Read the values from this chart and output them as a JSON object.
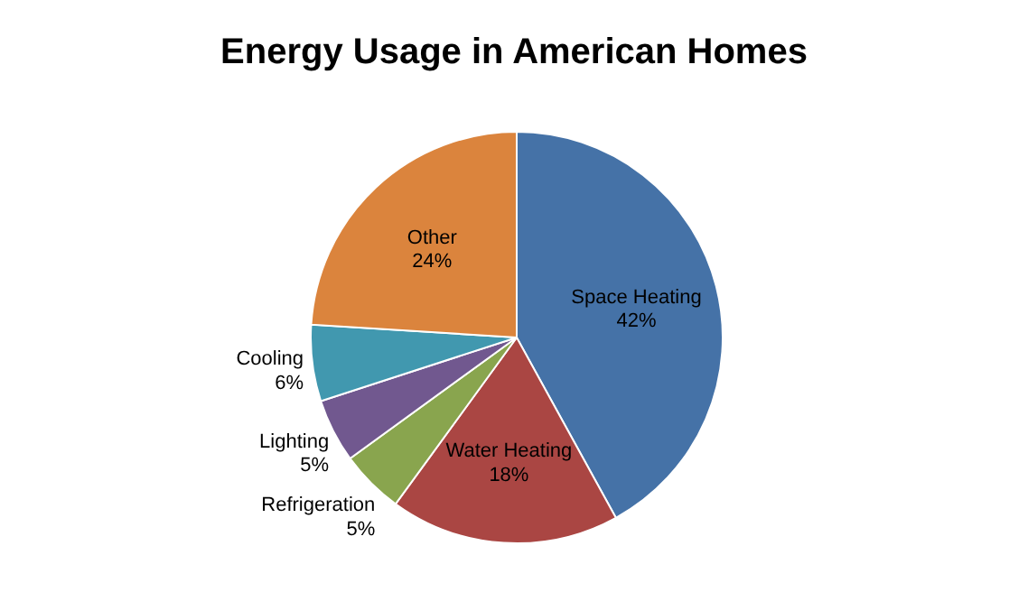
{
  "chart_data": {
    "type": "pie",
    "title": "Energy Usage in American Homes",
    "categories": [
      "Space Heating",
      "Water Heating",
      "Refrigeration",
      "Lighting",
      "Cooling",
      "Other"
    ],
    "values": [
      42,
      18,
      5,
      5,
      6,
      24
    ],
    "colors": [
      "#4572a7",
      "#aa4643",
      "#89a54e",
      "#71588f",
      "#4198af",
      "#db843d"
    ],
    "value_labels": [
      "42%",
      "18%",
      "5%",
      "5%",
      "6%",
      "24%"
    ]
  }
}
